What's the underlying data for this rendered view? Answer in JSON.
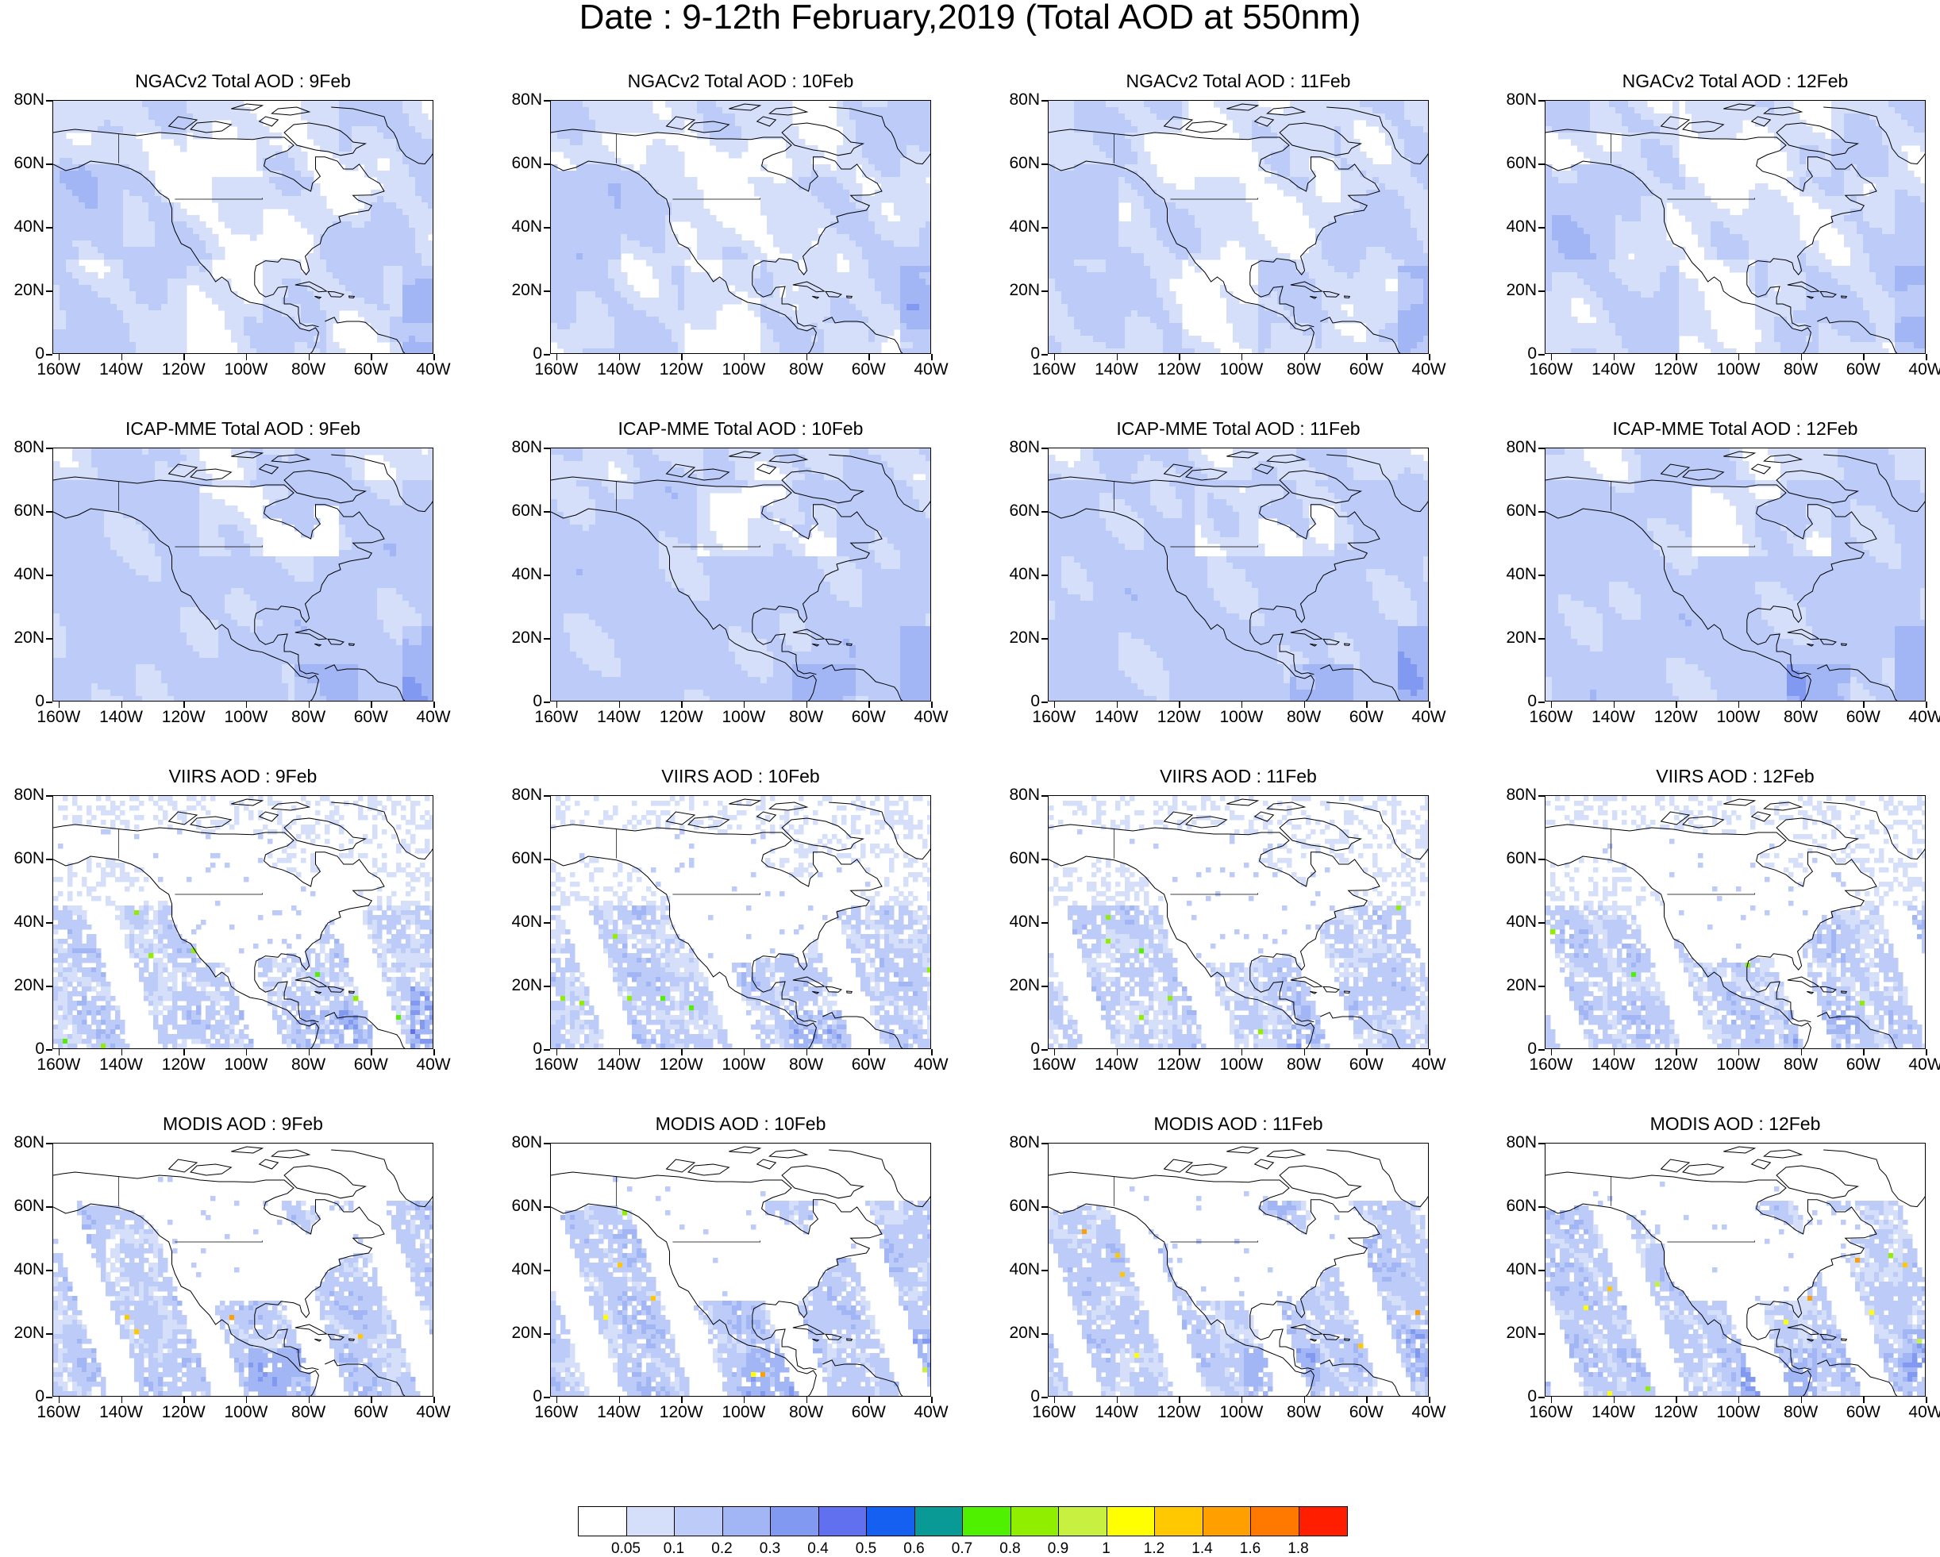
{
  "title": "Date : 9-12th February,2019 (Total AOD at 550nm)",
  "panels": [
    {
      "title": "NGACv2 Total AOD : 9Feb",
      "product": "NGACv2",
      "day": 9
    },
    {
      "title": "NGACv2 Total AOD : 10Feb",
      "product": "NGACv2",
      "day": 10
    },
    {
      "title": "NGACv2 Total AOD : 11Feb",
      "product": "NGACv2",
      "day": 11
    },
    {
      "title": "NGACv2 Total AOD : 12Feb",
      "product": "NGACv2",
      "day": 12
    },
    {
      "title": "ICAP-MME Total AOD : 9Feb",
      "product": "ICAP",
      "day": 9
    },
    {
      "title": "ICAP-MME Total AOD : 10Feb",
      "product": "ICAP",
      "day": 10
    },
    {
      "title": "ICAP-MME Total AOD : 11Feb",
      "product": "ICAP",
      "day": 11
    },
    {
      "title": "ICAP-MME Total AOD : 12Feb",
      "product": "ICAP",
      "day": 12
    },
    {
      "title": "VIIRS AOD : 9Feb",
      "product": "VIIRS",
      "day": 9
    },
    {
      "title": "VIIRS AOD : 10Feb",
      "product": "VIIRS",
      "day": 10
    },
    {
      "title": "VIIRS AOD : 11Feb",
      "product": "VIIRS",
      "day": 11
    },
    {
      "title": "VIIRS AOD : 12Feb",
      "product": "VIIRS",
      "day": 12
    },
    {
      "title": "MODIS AOD : 9Feb",
      "product": "MODIS",
      "day": 9
    },
    {
      "title": "MODIS AOD : 10Feb",
      "product": "MODIS",
      "day": 10
    },
    {
      "title": "MODIS AOD : 11Feb",
      "product": "MODIS",
      "day": 11
    },
    {
      "title": "MODIS AOD : 12Feb",
      "product": "MODIS",
      "day": 12
    }
  ],
  "axes": {
    "lat_labels": [
      "80N",
      "60N",
      "40N",
      "20N",
      "0"
    ],
    "lat_values": [
      80,
      60,
      40,
      20,
      0
    ],
    "lon_labels": [
      "160W",
      "140W",
      "120W",
      "100W",
      "80W",
      "60W",
      "40W"
    ],
    "lon_values": [
      -160,
      -140,
      -120,
      -100,
      -80,
      -60,
      -40
    ]
  },
  "colorbar": {
    "levels": [
      "0.05",
      "0.1",
      "0.2",
      "0.3",
      "0.4",
      "0.5",
      "0.6",
      "0.7",
      "0.8",
      "0.9",
      "1",
      "1.2",
      "1.4",
      "1.6",
      "1.8"
    ],
    "colors": [
      "#ffffff",
      "#d6dffa",
      "#bccbf8",
      "#a2b6f6",
      "#8299f2",
      "#6070ee",
      "#1560f0",
      "#0a9a96",
      "#4ff000",
      "#90ee00",
      "#c8f040",
      "#ffff00",
      "#ffc800",
      "#ffa000",
      "#ff7800",
      "#ff1e00"
    ]
  }
}
